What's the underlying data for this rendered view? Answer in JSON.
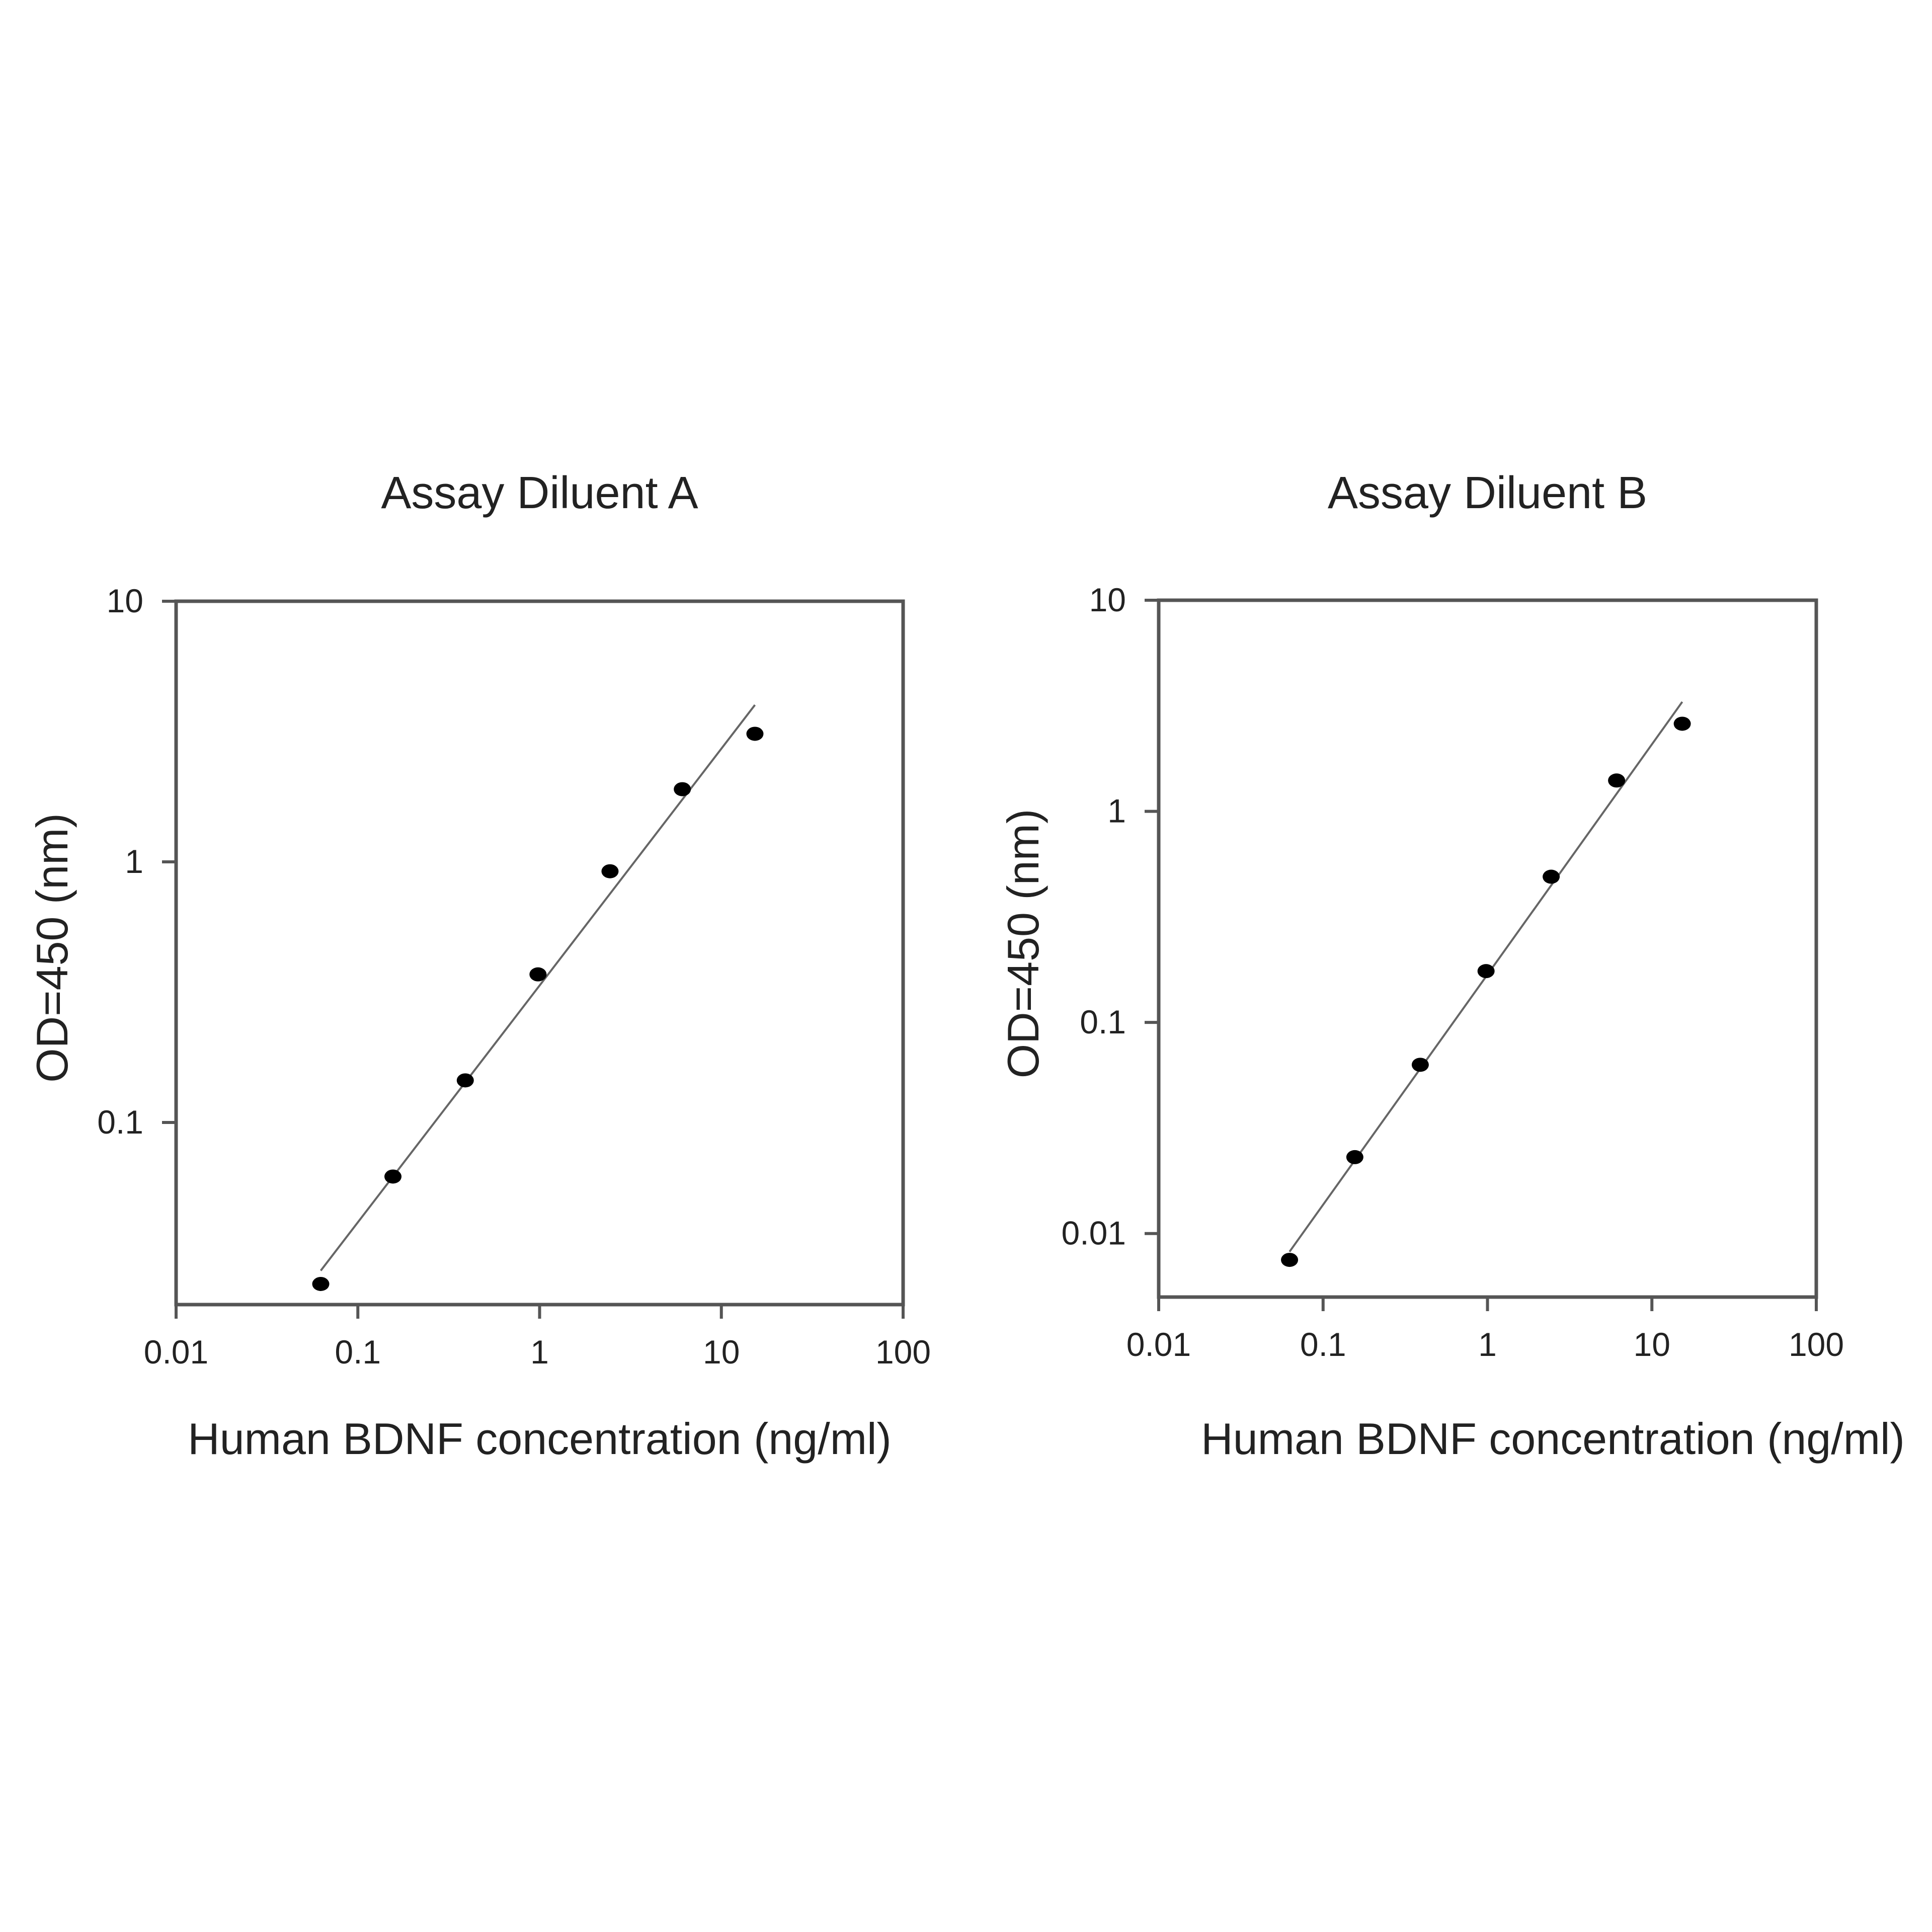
{
  "chart_data": [
    {
      "type": "scatter",
      "title": "Assay Diluent A",
      "xlabel": "Human BDNF concentration (ng/ml)",
      "ylabel": "OD=450 (nm)",
      "x_scale": "log",
      "y_scale": "log",
      "xlim": [
        0.01,
        100
      ],
      "ylim": [
        0.02,
        10
      ],
      "x_ticks": [
        {
          "value": 0.01,
          "label": "0.01"
        },
        {
          "value": 0.1,
          "label": "0.1"
        },
        {
          "value": 1,
          "label": "1"
        },
        {
          "value": 10,
          "label": "10"
        },
        {
          "value": 100,
          "label": "100"
        }
      ],
      "y_ticks": [
        {
          "value": 0.1,
          "label": "0.1"
        },
        {
          "value": 1,
          "label": "1"
        },
        {
          "value": 10,
          "label": "10"
        }
      ],
      "grid": false,
      "series": [
        {
          "x": [
            0.0625,
            0.156,
            0.39,
            0.98,
            2.44,
            6.1,
            15.3
          ],
          "y": [
            0.024,
            0.062,
            0.145,
            0.37,
            0.92,
            1.9,
            3.1
          ]
        }
      ],
      "fit_line": {
        "x": [
          0.0625,
          15.3
        ],
        "y": [
          0.027,
          4.0
        ]
      },
      "colors": {
        "points": "#000000",
        "line": "#666666",
        "frame": "#555555"
      }
    },
    {
      "type": "scatter",
      "title": "Assay Diluent B",
      "xlabel": "Human BDNF concentration (ng/ml)",
      "ylabel": "OD=450 (nm)",
      "x_scale": "log",
      "y_scale": "log",
      "xlim": [
        0.01,
        100
      ],
      "ylim": [
        0.005,
        10
      ],
      "x_ticks": [
        {
          "value": 0.01,
          "label": "0.01"
        },
        {
          "value": 0.1,
          "label": "0.1"
        },
        {
          "value": 1,
          "label": "1"
        },
        {
          "value": 10,
          "label": "10"
        },
        {
          "value": 100,
          "label": "100"
        }
      ],
      "y_ticks": [
        {
          "value": 0.01,
          "label": "0.01"
        },
        {
          "value": 0.1,
          "label": "0.1"
        },
        {
          "value": 1,
          "label": "1"
        },
        {
          "value": 10,
          "label": "10"
        }
      ],
      "grid": false,
      "series": [
        {
          "x": [
            0.0625,
            0.156,
            0.39,
            0.98,
            2.44,
            6.1,
            15.3
          ],
          "y": [
            0.0075,
            0.023,
            0.063,
            0.175,
            0.49,
            1.4,
            2.6
          ]
        }
      ],
      "fit_line": {
        "x": [
          0.0625,
          15.3
        ],
        "y": [
          0.0082,
          3.3
        ]
      },
      "colors": {
        "points": "#000000",
        "line": "#666666",
        "frame": "#555555"
      }
    }
  ]
}
